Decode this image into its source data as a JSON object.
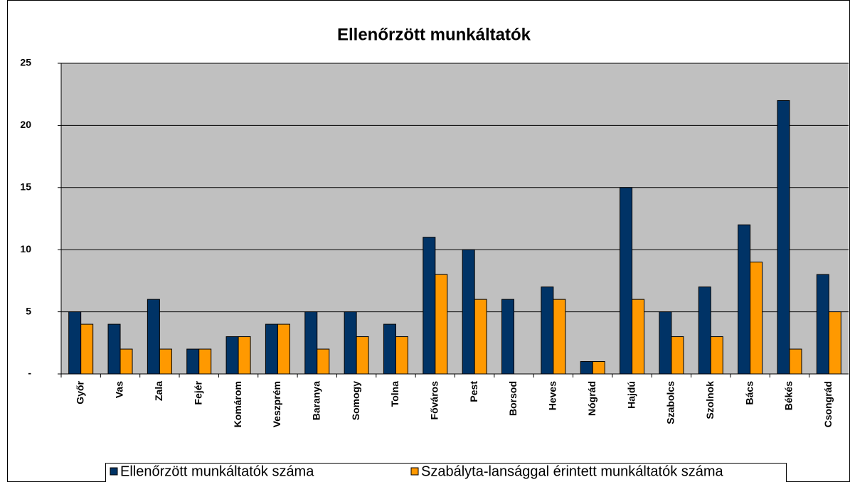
{
  "chart_data": {
    "type": "bar",
    "title": "Ellenőrzött munkáltatók",
    "categories": [
      "Győr",
      "Vas",
      "Zala",
      "Fejér",
      "Komárom",
      "Veszprém",
      "Baranya",
      "Somogy",
      "Tolna",
      "Főváros",
      "Pest",
      "Borsod",
      "Heves",
      "Nógrád",
      "Hajdú",
      "Szabolcs",
      "Szolnok",
      "Bács",
      "Békés",
      "Csongrád"
    ],
    "series": [
      {
        "name": "Ellenőrzött munkáltatók száma",
        "color": "#003366",
        "values": [
          5,
          4,
          6,
          2,
          3,
          4,
          5,
          5,
          4,
          11,
          10,
          6,
          7,
          1,
          15,
          5,
          7,
          12,
          22,
          8
        ]
      },
      {
        "name": "Szabályta-lansággal érintett munkáltatók száma",
        "color": "#FF9900",
        "values": [
          4,
          2,
          2,
          2,
          3,
          4,
          2,
          3,
          3,
          8,
          6,
          0,
          6,
          1,
          6,
          3,
          3,
          9,
          2,
          5
        ]
      }
    ],
    "ylim": [
      0,
      25
    ],
    "yticks": [
      {
        "value": 0,
        "label": "-"
      },
      5,
      10,
      15,
      20,
      25
    ],
    "grid": true,
    "legend": "bottom"
  }
}
